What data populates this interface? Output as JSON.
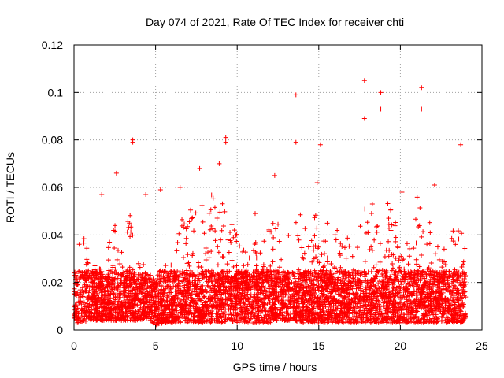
{
  "chart_data": {
    "type": "scatter",
    "title": "Day 074 of 2021, Rate Of TEC Index for receiver chti",
    "xlabel": "GPS time / hours",
    "ylabel": "ROTI / TECUs",
    "xlim": [
      0,
      25
    ],
    "ylim": [
      0,
      0.12
    ],
    "x_ticks": [
      0,
      5,
      10,
      15,
      20,
      25
    ],
    "x_tick_labels": [
      "0",
      "5",
      "10",
      "15",
      "20",
      "25"
    ],
    "y_ticks": [
      0,
      0.02,
      0.04,
      0.06,
      0.08,
      0.1,
      0.12
    ],
    "y_tick_labels": [
      "0",
      "0.02",
      "0.04",
      "0.06",
      "0.08",
      "0.1",
      "0.12"
    ],
    "grid": true,
    "marker": "+",
    "series": [
      {
        "name": "ROTI",
        "color": "#ff0000",
        "density_note": "dense band of points between roughly 0.005 and 0.025 TECU/s across the whole day, with spikes listed as x,y pairs",
        "x": [
          3.6,
          3.6,
          13.6,
          13.6,
          17.8,
          17.8,
          18.8,
          18.8,
          21.3,
          21.3,
          9.3,
          9.3,
          23.7,
          15.1,
          14.9,
          2.6,
          6.5,
          5.3,
          1.7,
          20.1,
          22.1,
          12.3,
          11.1,
          8.9,
          4.4,
          7.7
        ],
        "y": [
          0.08,
          0.079,
          0.099,
          0.079,
          0.105,
          0.089,
          0.1,
          0.093,
          0.102,
          0.093,
          0.081,
          0.079,
          0.078,
          0.078,
          0.062,
          0.066,
          0.06,
          0.059,
          0.057,
          0.058,
          0.061,
          0.065,
          0.049,
          0.07,
          0.057,
          0.068
        ]
      }
    ],
    "envelope": {
      "hours": [
        0,
        0.5,
        1,
        1.5,
        2,
        2.5,
        3,
        3.5,
        4,
        4.5,
        5,
        5.5,
        6,
        6.5,
        7,
        7.5,
        8,
        8.5,
        9,
        9.5,
        10,
        10.5,
        11,
        11.5,
        12,
        12.5,
        13,
        13.5,
        14,
        14.5,
        15,
        15.5,
        16,
        16.5,
        17,
        17.5,
        18,
        18.5,
        19,
        19.5,
        20,
        20.5,
        21,
        21.5,
        22,
        22.5,
        23,
        23.5,
        24
      ],
      "upper": [
        0.035,
        0.042,
        0.03,
        0.028,
        0.034,
        0.045,
        0.04,
        0.05,
        0.035,
        0.025,
        0.02,
        0.03,
        0.032,
        0.05,
        0.055,
        0.05,
        0.055,
        0.06,
        0.06,
        0.065,
        0.04,
        0.035,
        0.04,
        0.035,
        0.045,
        0.05,
        0.04,
        0.045,
        0.05,
        0.045,
        0.055,
        0.05,
        0.045,
        0.04,
        0.04,
        0.045,
        0.065,
        0.05,
        0.06,
        0.055,
        0.04,
        0.045,
        0.06,
        0.055,
        0.04,
        0.035,
        0.035,
        0.05,
        0.035
      ],
      "lower": [
        0.003,
        0.003,
        0.004,
        0.004,
        0.004,
        0.004,
        0.004,
        0.004,
        0.004,
        0.005,
        0.002,
        0.003,
        0.003,
        0.003,
        0.003,
        0.003,
        0.003,
        0.003,
        0.003,
        0.004,
        0.003,
        0.003,
        0.003,
        0.003,
        0.003,
        0.004,
        0.004,
        0.004,
        0.003,
        0.003,
        0.003,
        0.003,
        0.003,
        0.003,
        0.003,
        0.003,
        0.003,
        0.003,
        0.003,
        0.003,
        0.003,
        0.003,
        0.003,
        0.003,
        0.003,
        0.003,
        0.003,
        0.003,
        0.003
      ]
    }
  }
}
